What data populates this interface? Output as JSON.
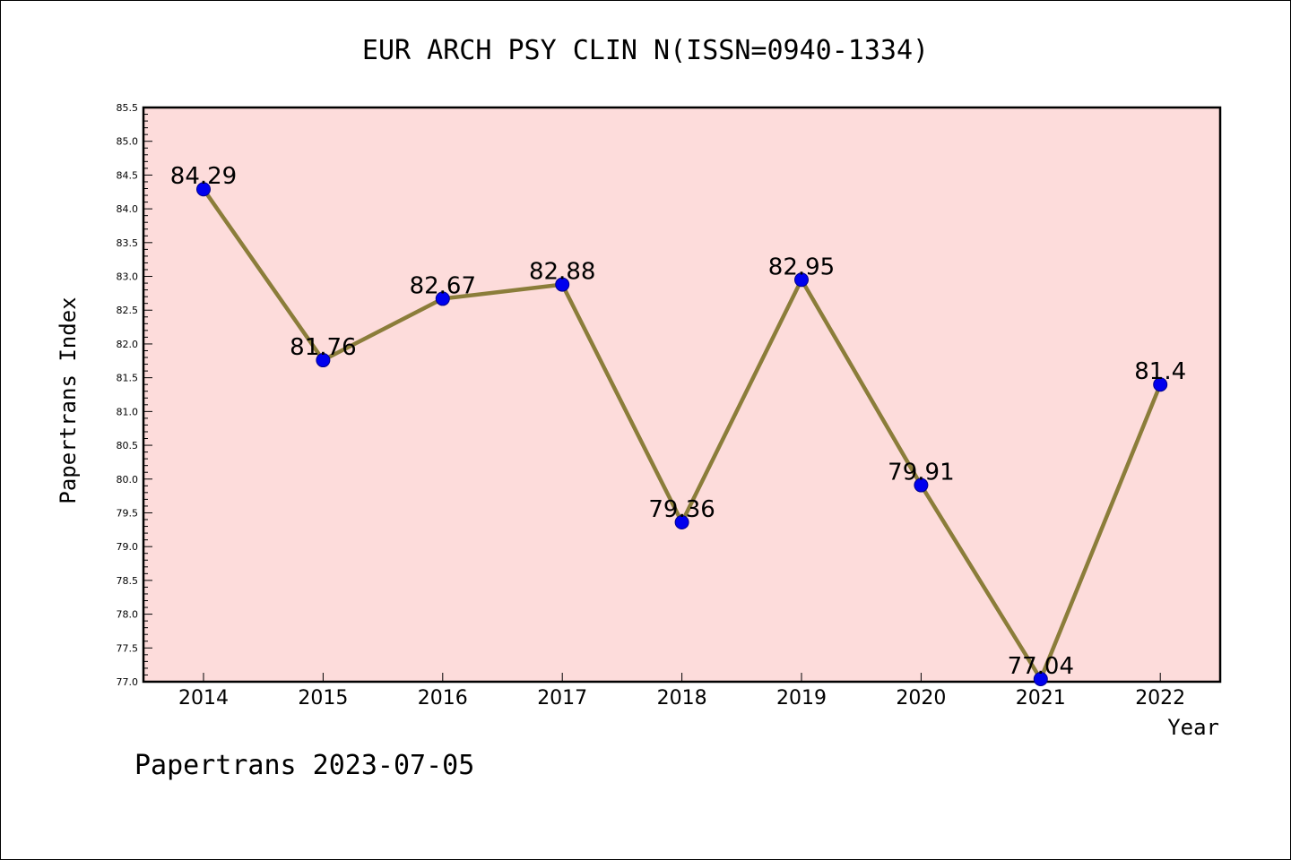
{
  "chart_data": {
    "type": "line",
    "title": "EUR ARCH PSY CLIN N(ISSN=0940-1334)",
    "xlabel": "Year",
    "ylabel": "Papertrans Index",
    "categories": [
      "2014",
      "2015",
      "2016",
      "2017",
      "2018",
      "2019",
      "2020",
      "2021",
      "2022"
    ],
    "series": [
      {
        "values": [
          84.29,
          81.76,
          82.67,
          82.88,
          79.36,
          82.95,
          79.91,
          77.04,
          81.4
        ],
        "labels": [
          "84.29",
          "81.76",
          "82.67",
          "82.88",
          "79.36",
          "82.95",
          "79.91",
          "77.04",
          "81.4"
        ]
      }
    ],
    "ylim": [
      77.0,
      85.5
    ],
    "yticks": [
      "77.0",
      "77.5",
      "78.0",
      "78.5",
      "79.0",
      "79.5",
      "80.0",
      "80.5",
      "81.0",
      "81.5",
      "82.0",
      "82.5",
      "83.0",
      "83.5",
      "84.0",
      "84.5",
      "85.0",
      "85.5"
    ],
    "grid": false,
    "colors": {
      "plot_background": "#fddcdb",
      "line": "#8b7d3a",
      "marker": "#0000ee",
      "marker_edge": "#00008b"
    }
  },
  "footer": "Papertrans 2023-07-05"
}
